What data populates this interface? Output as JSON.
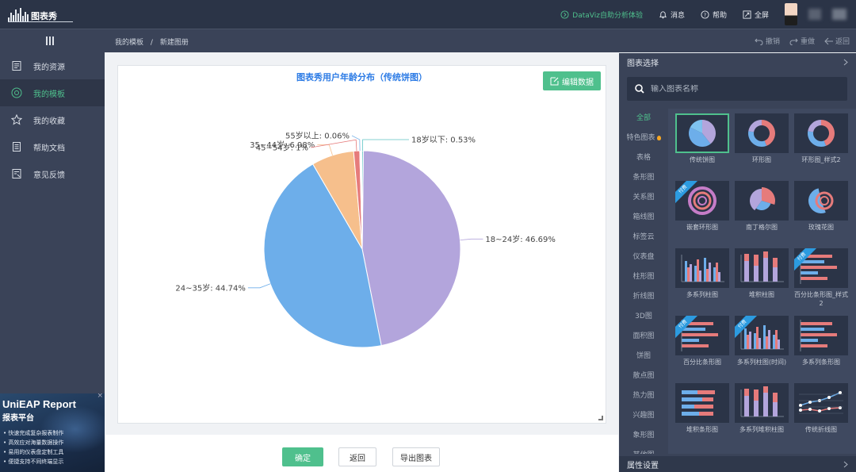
{
  "header": {
    "logo_text": "图表秀",
    "links": [
      {
        "name": "dataviz",
        "label": "DataViz自助分析体验"
      },
      {
        "name": "messages",
        "label": "消息"
      },
      {
        "name": "help",
        "label": "帮助"
      },
      {
        "name": "fullscreen",
        "label": "全屏"
      }
    ]
  },
  "subbar": {
    "breadcrumb": [
      "我的模板",
      "/",
      "新建图册"
    ],
    "actions": [
      {
        "name": "undo",
        "label": "撤销"
      },
      {
        "name": "redo",
        "label": "重做"
      },
      {
        "name": "back",
        "label": "返回"
      }
    ]
  },
  "sidebar": {
    "items": [
      {
        "label": "我的资源",
        "icon": "resource-icon",
        "active": false
      },
      {
        "label": "我的模板",
        "icon": "template-icon",
        "active": true
      },
      {
        "label": "我的收藏",
        "icon": "star-icon",
        "active": false
      },
      {
        "label": "帮助文档",
        "icon": "document-icon",
        "active": false
      },
      {
        "label": "意见反馈",
        "icon": "feedback-icon",
        "active": false
      }
    ],
    "ad": {
      "title": "UniEAP Report",
      "subtitle": "报表平台",
      "close": "×",
      "points": [
        "• 快速完成复杂报表制作",
        "• 高效应对海量数据操作",
        "• 易用的仪表盘定制工具",
        "• 便捷支持不同终端显示"
      ]
    }
  },
  "main": {
    "edit_button": "编辑数据",
    "buttons": {
      "confirm": "确定",
      "back": "返回",
      "export": "导出图表"
    }
  },
  "chart_data": {
    "type": "pie",
    "title": "图表秀用户年龄分布（传统饼图）",
    "slices": [
      {
        "label": "18~24岁",
        "value": 46.69,
        "display": "18~24岁: 46.69%",
        "color": "#b3a5dc"
      },
      {
        "label": "24~35岁",
        "value": 44.74,
        "display": "24~35岁: 44.74%",
        "color": "#6daeea"
      },
      {
        "label": "35~44岁",
        "value": 6.98,
        "display": "35~44岁: 6.98%",
        "color": "#f6bf8c"
      },
      {
        "label": "45~54岁",
        "value": 1,
        "display": "45~54岁: 1%",
        "color": "#e67b7b"
      },
      {
        "label": "55岁以上",
        "value": 0.06,
        "display": "55岁以上: 0.06%",
        "color": "#7fb6e8"
      },
      {
        "label": "18岁以下",
        "value": 0.53,
        "display": "18岁以下: 0.53%",
        "color": "#5ec4c4"
      }
    ]
  },
  "right_panel": {
    "title": "图表选择",
    "search_placeholder": "输入图表名称",
    "footer": "属性设置",
    "categories": [
      "全部",
      "特色图表",
      "表格",
      "条形图",
      "关系图",
      "箱线图",
      "标签云",
      "仪表盘",
      "柱形图",
      "折线图",
      "3D图",
      "面积图",
      "饼图",
      "散点图",
      "热力图",
      "兴趣图",
      "象形图",
      "其他图"
    ],
    "active_category": "全部",
    "thumbnails": [
      {
        "label": "传统饼图",
        "icon": "pie-chart-icon",
        "selected": true,
        "badge": ""
      },
      {
        "label": "环形图",
        "icon": "donut-chart-icon",
        "selected": false,
        "badge": ""
      },
      {
        "label": "环形图_样式2",
        "icon": "donut-chart-icon",
        "selected": false,
        "badge": ""
      },
      {
        "label": "嵌套环形图",
        "icon": "nested-donut-icon",
        "selected": false,
        "badge": "付费"
      },
      {
        "label": "南丁格尔图",
        "icon": "nightingale-icon",
        "selected": false,
        "badge": ""
      },
      {
        "label": "玫瑰花图",
        "icon": "rose-chart-icon",
        "selected": false,
        "badge": ""
      },
      {
        "label": "多系列柱图",
        "icon": "grouped-bar-icon",
        "selected": false,
        "badge": ""
      },
      {
        "label": "堆积柱图",
        "icon": "stacked-bar-icon",
        "selected": false,
        "badge": ""
      },
      {
        "label": "百分比条形图_样式2",
        "icon": "percent-hbar-icon",
        "selected": false,
        "badge": "付费"
      },
      {
        "label": "百分比条形图",
        "icon": "percent-hbar-icon",
        "selected": false,
        "badge": "付费"
      },
      {
        "label": "多系列柱图(时间)",
        "icon": "time-bar-icon",
        "selected": false,
        "badge": "付费"
      },
      {
        "label": "多系列条形图",
        "icon": "grouped-hbar-icon",
        "selected": false,
        "badge": ""
      },
      {
        "label": "堆积条形图",
        "icon": "stacked-hbar-icon",
        "selected": false,
        "badge": ""
      },
      {
        "label": "多系列堆积柱图",
        "icon": "stacked-grouped-bar-icon",
        "selected": false,
        "badge": ""
      },
      {
        "label": "传统折线图",
        "icon": "line-chart-icon",
        "selected": false,
        "badge": ""
      }
    ]
  }
}
